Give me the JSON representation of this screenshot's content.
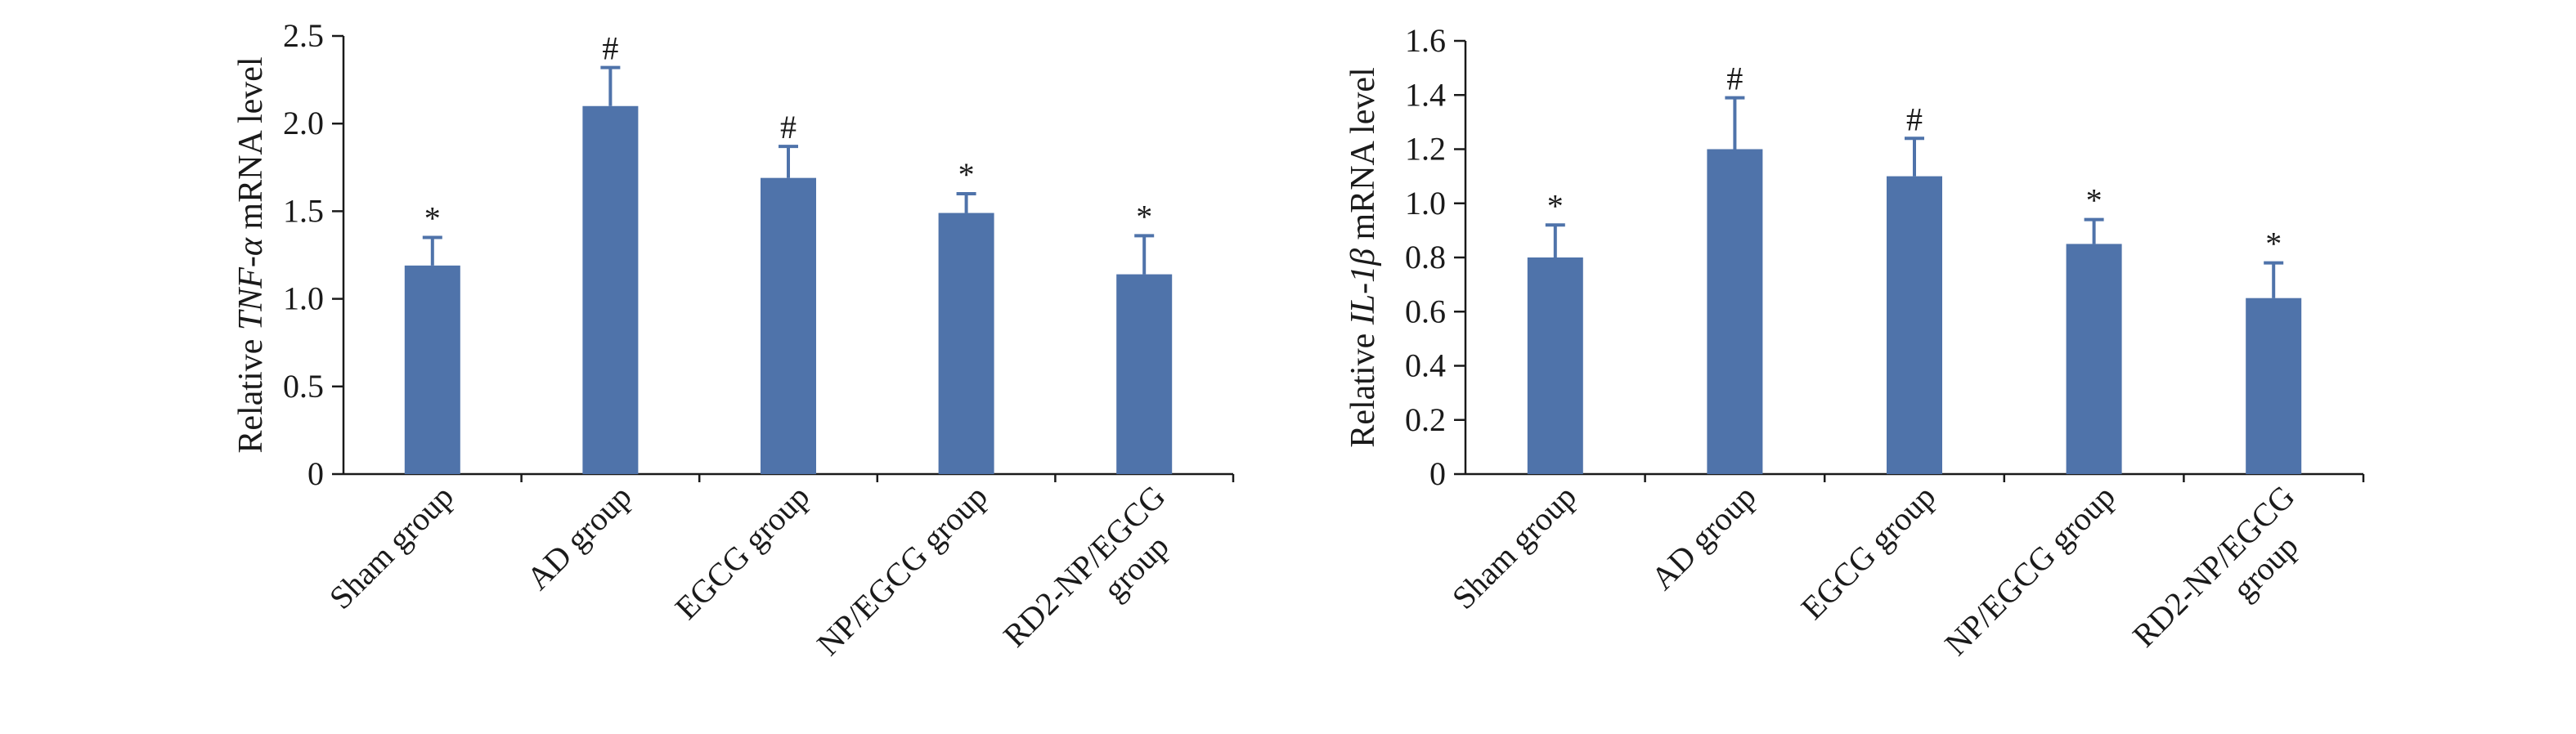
{
  "chart_data": [
    {
      "type": "bar",
      "categories": [
        "Sham group",
        "AD group",
        "EGCG group",
        "NP/EGCG group",
        "RD2-NP/EGCG group"
      ],
      "values": [
        1.19,
        2.1,
        1.69,
        1.49,
        1.14
      ],
      "errors": [
        0.16,
        0.22,
        0.18,
        0.11,
        0.22
      ],
      "annotations": [
        "*",
        "#",
        "#",
        "*",
        "*"
      ],
      "ylabel_pre": "Relative ",
      "ylabel_gene": "TNF-α",
      "ylabel_post": " mRNA level",
      "ylim": [
        0,
        2.5
      ],
      "yticks": [
        0,
        0.5,
        1.0,
        1.5,
        2.0,
        2.5
      ],
      "ytick_labels": [
        "0",
        "0.5",
        "1.0",
        "1.5",
        "2.0",
        "2.5"
      ],
      "bar_color": "#4f73aa",
      "grid": false
    },
    {
      "type": "bar",
      "categories": [
        "Sham group",
        "AD group",
        "EGCG group",
        "NP/EGCG group",
        "RD2-NP/EGCG group"
      ],
      "values": [
        0.8,
        1.2,
        1.1,
        0.85,
        0.65
      ],
      "errors": [
        0.12,
        0.19,
        0.14,
        0.09,
        0.13
      ],
      "annotations": [
        "*",
        "#",
        "#",
        "*",
        "*"
      ],
      "ylabel_pre": "Relative ",
      "ylabel_gene": "IL-1β",
      "ylabel_post": " mRNA level",
      "ylim": [
        0,
        1.6
      ],
      "yticks": [
        0,
        0.2,
        0.4,
        0.6,
        0.8,
        1.0,
        1.2,
        1.4,
        1.6
      ],
      "ytick_labels": [
        "0",
        "0.2",
        "0.4",
        "0.6",
        "0.8",
        "1.0",
        "1.2",
        "1.4",
        "1.6"
      ],
      "bar_color": "#4f73aa",
      "grid": false
    }
  ]
}
